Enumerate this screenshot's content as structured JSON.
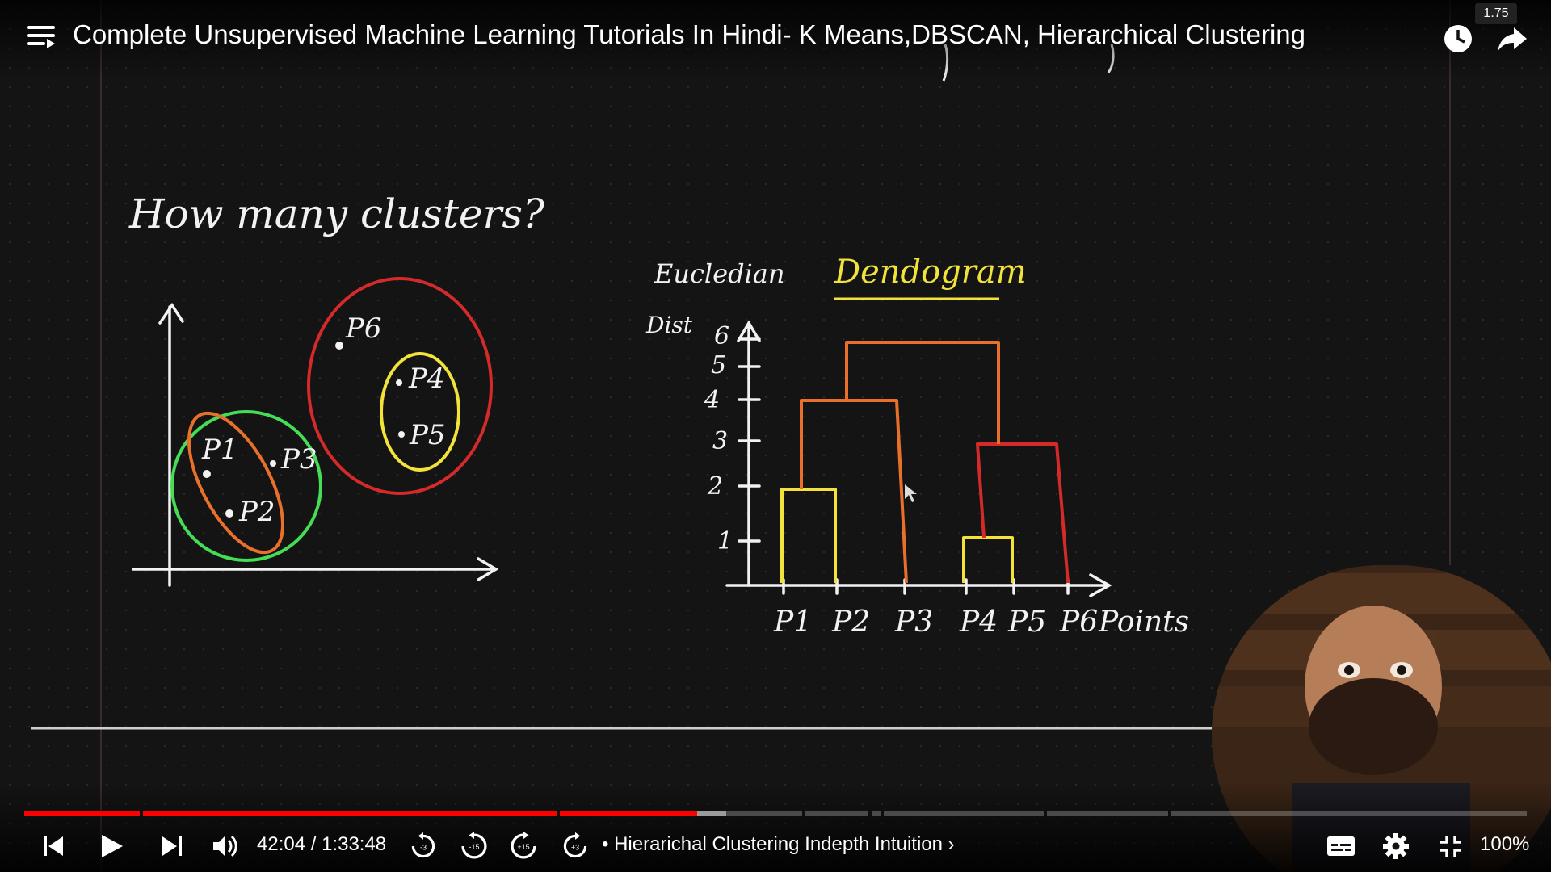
{
  "video": {
    "title": "Complete Unsupervised Machine Learning Tutorials In Hindi- K Means,DBSCAN, Hierarchical Clustering",
    "speed": "1.75",
    "time_current": "42:04",
    "time_separator": " / ",
    "time_total": "1:33:48",
    "chapter_prefix": "•",
    "chapter": "Hierarichal Clustering Indepth Intuition",
    "chapter_suffix": "›",
    "zoom": "100%",
    "progress_fraction": 0.448,
    "buffered_fraction": 0.467,
    "accent_color": "#ff0000"
  },
  "whiteboard": {
    "question": "How many clusters?",
    "scatter_points": [
      "P1",
      "P2",
      "P3",
      "P4",
      "P5",
      "P6"
    ],
    "axis_label_top": "Eucledian",
    "axis_label_bottom": "Dist",
    "dendrogram_title": "Dendogram",
    "y_ticks": [
      "1",
      "2",
      "3",
      "4",
      "5",
      "6"
    ],
    "x_labels": [
      "P1",
      "P2",
      "P3",
      "P4",
      "P5",
      "P6"
    ],
    "x_axis_label": "Points",
    "colors": {
      "yellow": "#f2e23a",
      "orange": "#e8702a",
      "red": "#d42a2a",
      "green": "#44dd55",
      "white": "#f2f2f2"
    }
  },
  "icons": {
    "menu": "playlist-icon",
    "watch_later": "clock-icon",
    "share": "share-arrow-icon",
    "prev": "skip-previous-icon",
    "play": "play-icon",
    "next": "skip-next-icon",
    "volume": "volume-icon",
    "rewind3": "rewind-3-icon",
    "rewind15": "rewind-15-icon",
    "forward15": "forward-15-icon",
    "forward3": "forward-3-icon",
    "captions": "captions-icon",
    "settings": "gear-icon",
    "exit_fullscreen": "exit-fullscreen-icon"
  },
  "seek_labels": {
    "r3": "-3",
    "r15": "-15",
    "f15": "+15",
    "f3": "+3"
  }
}
